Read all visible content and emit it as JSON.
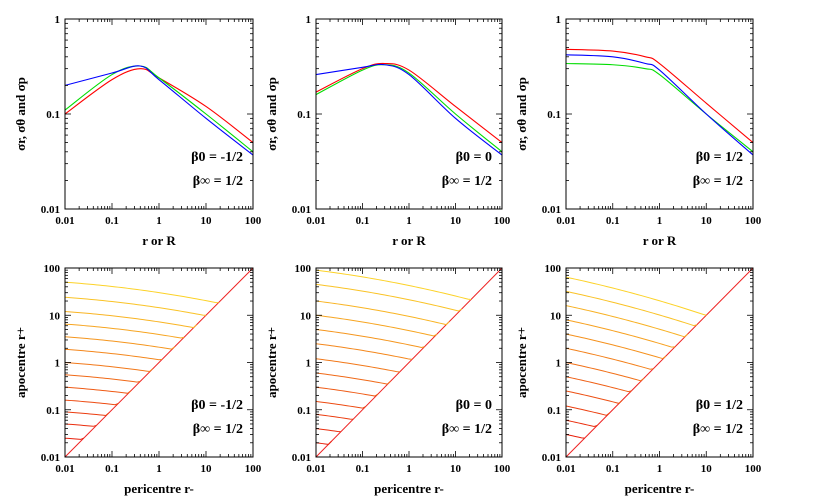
{
  "chart_data": [
    {
      "type": "line",
      "panel": "top-left",
      "title": "",
      "xlabel": "r or R",
      "ylabel": "σr, σθ and σp",
      "xscale": "log",
      "yscale": "log",
      "xlim": [
        0.01,
        100
      ],
      "ylim": [
        0.01,
        1
      ],
      "xticks": [
        0.01,
        0.1,
        1,
        10,
        100
      ],
      "xtick_labels": [
        "0.01",
        "0.1",
        "1",
        "10",
        "100"
      ],
      "yticks": [
        0.01,
        0.1,
        1
      ],
      "ytick_labels": [
        "0.01",
        "0.1",
        "1"
      ],
      "annotation": [
        "β0 = -1/2",
        "β∞ = 1/2"
      ],
      "x": [
        0.01,
        0.1,
        0.4,
        1,
        10,
        100
      ],
      "series": [
        {
          "name": "red",
          "color": "#ff0000",
          "values": [
            0.1,
            0.23,
            0.3,
            0.24,
            0.12,
            0.05
          ]
        },
        {
          "name": "green",
          "color": "#00dd00",
          "values": [
            0.11,
            0.26,
            0.32,
            0.24,
            0.1,
            0.04
          ]
        },
        {
          "name": "blue",
          "color": "#0000ff",
          "values": [
            0.2,
            0.27,
            0.32,
            0.23,
            0.09,
            0.037
          ]
        }
      ]
    },
    {
      "type": "line",
      "panel": "top-middle",
      "title": "",
      "xlabel": "r or R",
      "ylabel": "σr, σθ and σp",
      "xscale": "log",
      "yscale": "log",
      "xlim": [
        0.01,
        100
      ],
      "ylim": [
        0.01,
        1
      ],
      "xticks": [
        0.01,
        0.1,
        1,
        10,
        100
      ],
      "xtick_labels": [
        "0.01",
        "0.1",
        "1",
        "10",
        "100"
      ],
      "yticks": [
        0.01,
        0.1,
        1
      ],
      "ytick_labels": [
        "0.01",
        "0.1",
        "1"
      ],
      "annotation": [
        "β0 = 0",
        "β∞ = 1/2"
      ],
      "x": [
        0.01,
        0.1,
        0.3,
        1,
        10,
        100
      ],
      "series": [
        {
          "name": "red",
          "color": "#ff0000",
          "values": [
            0.17,
            0.3,
            0.34,
            0.29,
            0.12,
            0.05
          ]
        },
        {
          "name": "green",
          "color": "#00dd00",
          "values": [
            0.16,
            0.29,
            0.33,
            0.27,
            0.1,
            0.04
          ]
        },
        {
          "name": "blue",
          "color": "#0000ff",
          "values": [
            0.26,
            0.31,
            0.33,
            0.26,
            0.09,
            0.037
          ]
        }
      ]
    },
    {
      "type": "line",
      "panel": "top-right",
      "title": "",
      "xlabel": "r or R",
      "ylabel": "σr, σθ and σp",
      "xscale": "log",
      "yscale": "log",
      "xlim": [
        0.01,
        100
      ],
      "ylim": [
        0.01,
        1
      ],
      "xticks": [
        0.01,
        0.1,
        1,
        10,
        100
      ],
      "xtick_labels": [
        "0.01",
        "0.1",
        "1",
        "10",
        "100"
      ],
      "yticks": [
        0.01,
        0.1,
        1
      ],
      "ytick_labels": [
        "0.01",
        "0.1",
        "1"
      ],
      "annotation": [
        "β0 = 1/2",
        "β∞ = 1/2"
      ],
      "x": [
        0.01,
        0.1,
        0.5,
        1,
        10,
        100
      ],
      "series": [
        {
          "name": "red",
          "color": "#ff0000",
          "values": [
            0.48,
            0.46,
            0.4,
            0.34,
            0.13,
            0.05
          ]
        },
        {
          "name": "green",
          "color": "#00dd00",
          "values": [
            0.34,
            0.33,
            0.3,
            0.26,
            0.1,
            0.04
          ]
        },
        {
          "name": "blue",
          "color": "#0000ff",
          "values": [
            0.42,
            0.4,
            0.34,
            0.29,
            0.1,
            0.037
          ]
        }
      ]
    },
    {
      "type": "line",
      "panel": "bottom-left",
      "title": "",
      "xlabel": "pericentre r-",
      "ylabel": "apocentre r+",
      "xscale": "log",
      "yscale": "log",
      "xlim": [
        0.01,
        100
      ],
      "ylim": [
        0.01,
        100
      ],
      "xticks": [
        0.01,
        0.1,
        1,
        10,
        100
      ],
      "xtick_labels": [
        "0.01",
        "0.1",
        "1",
        "10",
        "100"
      ],
      "yticks": [
        0.01,
        0.1,
        1,
        10,
        100
      ],
      "ytick_labels": [
        "0.01",
        "0.1",
        "1",
        "10",
        "100"
      ],
      "annotation": [
        "β0 = -1/2",
        "β∞ = 1/2"
      ],
      "diagonal": "r+ = r-",
      "contours": {
        "apocentre_start": [
          0.025,
          0.05,
          0.09,
          0.16,
          0.3,
          0.55,
          1.0,
          1.9,
          3.5,
          6.5,
          12,
          24,
          50
        ],
        "shape_exponent": -0.2
      }
    },
    {
      "type": "line",
      "panel": "bottom-middle",
      "title": "",
      "xlabel": "pericentre r-",
      "ylabel": "apocentre r+",
      "xscale": "log",
      "yscale": "log",
      "xlim": [
        0.01,
        100
      ],
      "ylim": [
        0.01,
        100
      ],
      "xticks": [
        0.01,
        0.1,
        1,
        10,
        100
      ],
      "xtick_labels": [
        "0.01",
        "0.1",
        "1",
        "10",
        "100"
      ],
      "yticks": [
        0.01,
        0.1,
        1,
        10,
        100
      ],
      "ytick_labels": [
        "0.01",
        "0.1",
        "1",
        "10",
        "100"
      ],
      "annotation": [
        "β0 = 0",
        "β∞ = 1/2"
      ],
      "diagonal": "r+ = r-",
      "contours": {
        "apocentre_start": [
          0.02,
          0.04,
          0.08,
          0.15,
          0.3,
          0.6,
          1.2,
          2.5,
          5,
          10,
          20,
          45,
          90
        ],
        "shape_exponent": -0.35
      }
    },
    {
      "type": "line",
      "panel": "bottom-right",
      "title": "",
      "xlabel": "pericentre r-",
      "ylabel": "apocentre r+",
      "xscale": "log",
      "yscale": "log",
      "xlim": [
        0.01,
        100
      ],
      "ylim": [
        0.01,
        100
      ],
      "xticks": [
        0.01,
        0.1,
        1,
        10,
        100
      ],
      "xtick_labels": [
        "0.01",
        "0.1",
        "1",
        "10",
        "100"
      ],
      "yticks": [
        0.01,
        0.1,
        1,
        10,
        100
      ],
      "ytick_labels": [
        "0.01",
        "0.1",
        "1",
        "10",
        "100"
      ],
      "annotation": [
        "β0 = 1/2",
        "β∞ = 1/2"
      ],
      "diagonal": "r+ = r-",
      "contours": {
        "apocentre_start": [
          0.03,
          0.06,
          0.12,
          0.25,
          0.5,
          1.0,
          2.0,
          4.0,
          8.0,
          16,
          32,
          64
        ],
        "shape_exponent": -0.6
      }
    }
  ]
}
